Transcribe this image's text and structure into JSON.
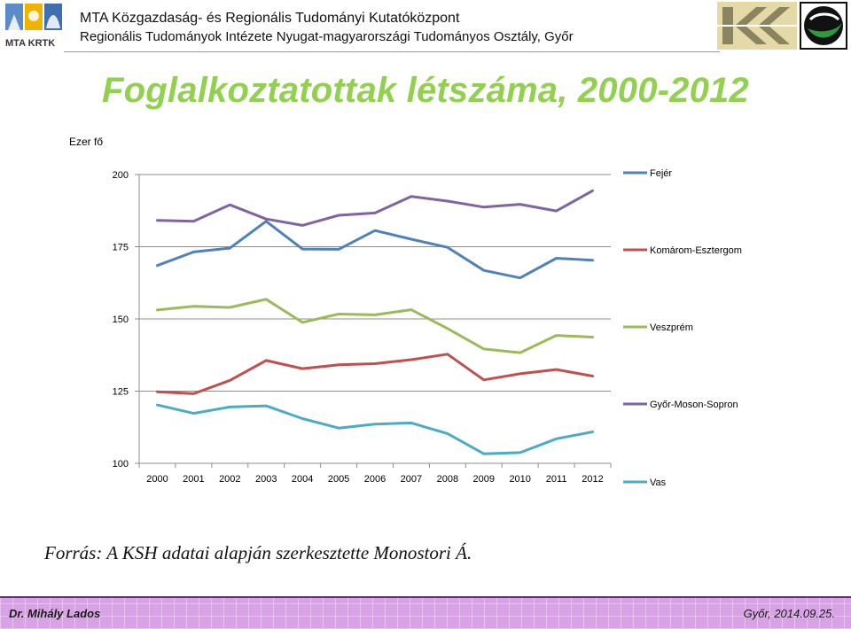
{
  "header": {
    "logo_text": "MTA KRTK",
    "institute_line1": "MTA Közgazdaság- és Regionális Tudományi Kutatóközpont",
    "institute_line2": "Regionális Tudományok Intézete Nyugat-magyarországi Tudományos Osztály, Győr"
  },
  "title": "Foglalkoztatottak létszáma, 2000-2012",
  "source": "Forrás: A KSH adatai alapján szerkesztette Monostori Á.",
  "footer": {
    "author": "Dr. Mihály Lados",
    "date": "Győr, 2014.09.25."
  },
  "chart_data": {
    "type": "line",
    "title": "",
    "ylabel": "Ezer fő",
    "xlabel": "",
    "ylim": [
      100,
      200
    ],
    "yticks": [
      "100",
      "125",
      "150",
      "175",
      "200"
    ],
    "categories": [
      "2000",
      "2001",
      "2002",
      "2003",
      "2004",
      "2005",
      "2006",
      "2007",
      "2008",
      "2009",
      "2010",
      "2011",
      "2012"
    ],
    "grid": true,
    "legend_position": "right",
    "series": [
      {
        "name": "Fejér",
        "color": "#4f81bd",
        "values": [
          168.5,
          173.2,
          174.5,
          183.8,
          174.2,
          174.1,
          180.6,
          177.6,
          174.8,
          166.8,
          164.2,
          171.0,
          170.3
        ]
      },
      {
        "name": "Komárom-Esztergom",
        "color": "#c0504d",
        "values": [
          124.8,
          124.1,
          128.7,
          135.6,
          132.8,
          134.1,
          134.5,
          135.9,
          137.8,
          128.9,
          131.0,
          132.5,
          130.2
        ]
      },
      {
        "name": "Veszprém",
        "color": "#9bbb59",
        "values": [
          153.1,
          154.4,
          154.0,
          156.8,
          148.8,
          151.7,
          151.4,
          153.2,
          146.7,
          139.6,
          138.3,
          144.3,
          143.7
        ]
      },
      {
        "name": "Győr-Moson-Sopron",
        "color": "#8064a2",
        "values": [
          184.1,
          183.8,
          189.5,
          184.6,
          182.4,
          185.9,
          186.7,
          192.4,
          190.8,
          188.7,
          189.7,
          187.4,
          194.4
        ]
      },
      {
        "name": "Vas",
        "color": "#4bacc6",
        "values": [
          120.2,
          117.3,
          119.5,
          119.9,
          115.5,
          112.2,
          113.6,
          114.0,
          110.3,
          103.3,
          103.7,
          108.5,
          110.9
        ]
      }
    ]
  }
}
